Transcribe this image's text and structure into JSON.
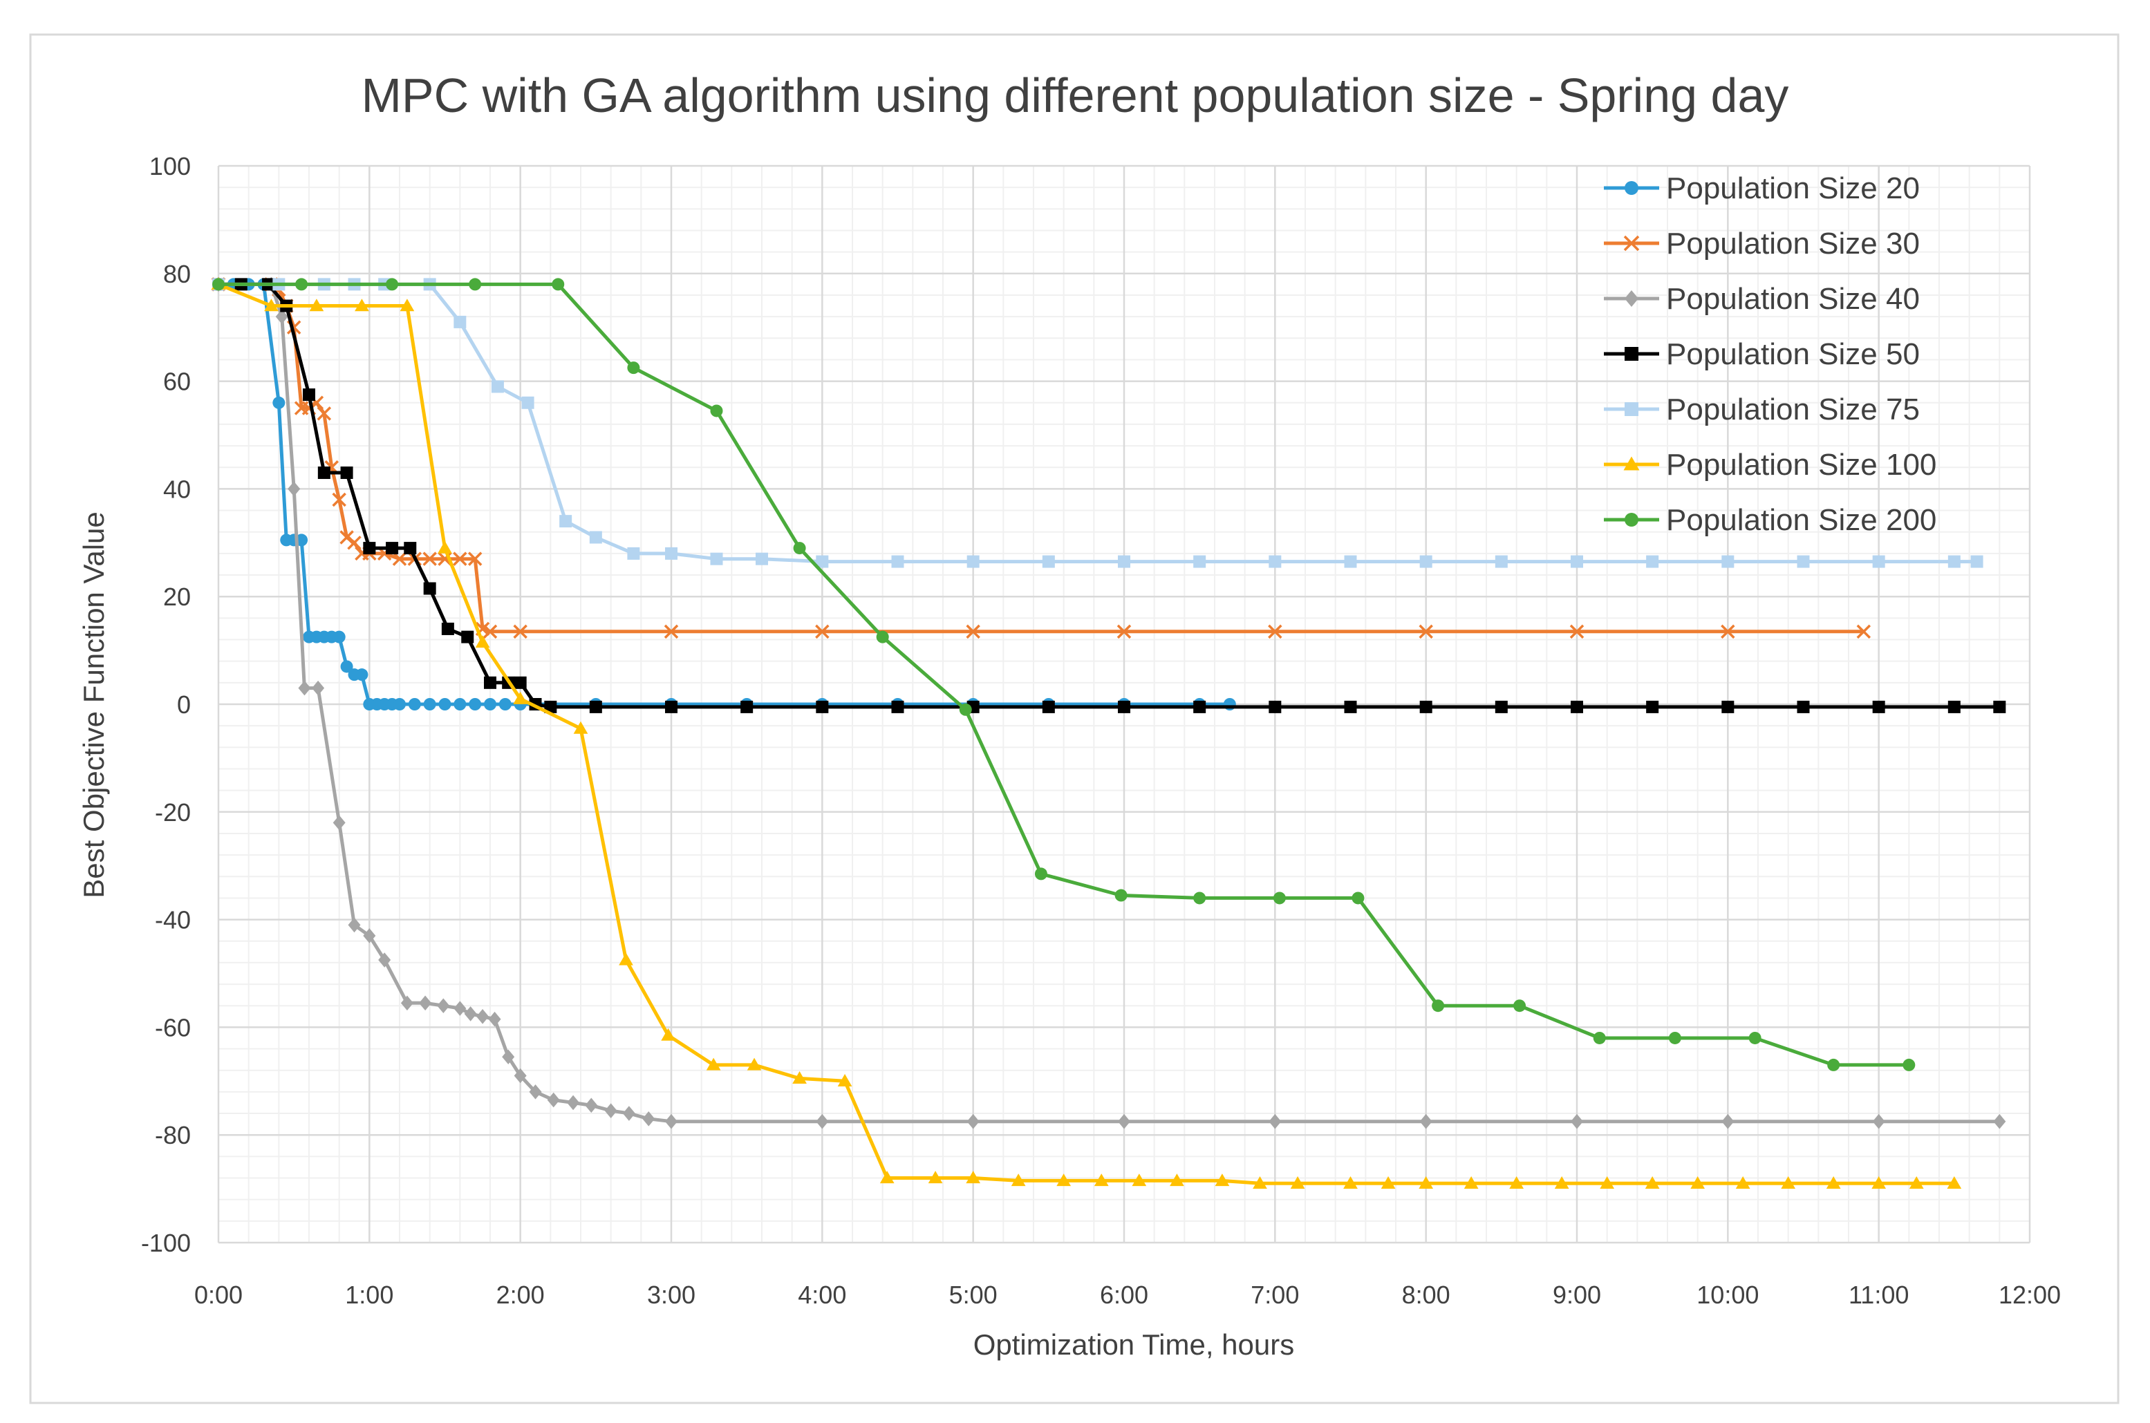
{
  "chart_data": {
    "type": "line",
    "title": "MPC with GA algorithm using different population size - Spring day",
    "xlabel": "Optimization Time, hours",
    "ylabel": "Best Objective Function Value",
    "xlim": [
      0,
      12
    ],
    "ylim": [
      -100,
      100
    ],
    "x_ticks": [
      0,
      1,
      2,
      3,
      4,
      5,
      6,
      7,
      8,
      9,
      10,
      11,
      12
    ],
    "x_tick_labels": [
      "0:00",
      "1:00",
      "2:00",
      "3:00",
      "4:00",
      "5:00",
      "6:00",
      "7:00",
      "8:00",
      "9:00",
      "10:00",
      "11:00",
      "12:00"
    ],
    "y_ticks": [
      -100,
      -80,
      -60,
      -40,
      -20,
      0,
      20,
      40,
      60,
      80,
      100
    ],
    "y_tick_labels": [
      "-100",
      "-80",
      "-60",
      "-40",
      "-20",
      "0",
      "20",
      "40",
      "60",
      "80",
      "100"
    ],
    "grid": true,
    "legend_position": "top-right",
    "series": [
      {
        "name": "Population Size 20",
        "color": "#2e9bd6",
        "marker": "circle",
        "x": [
          0,
          0.1,
          0.2,
          0.3,
          0.4,
          0.45,
          0.5,
          0.55,
          0.6,
          0.65,
          0.7,
          0.75,
          0.8,
          0.85,
          0.9,
          0.95,
          1.0,
          1.05,
          1.1,
          1.15,
          1.2,
          1.3,
          1.4,
          1.5,
          1.6,
          1.7,
          1.8,
          1.9,
          2.0,
          2.5,
          3.0,
          3.5,
          4.0,
          4.5,
          5.0,
          5.5,
          6.0,
          6.5,
          6.7
        ],
        "y": [
          78,
          78,
          78,
          78,
          56,
          30.5,
          30.5,
          30.5,
          12.5,
          12.5,
          12.5,
          12.5,
          12.5,
          7,
          5.5,
          5.5,
          0,
          0,
          0,
          0,
          0,
          0,
          0,
          0,
          0,
          0,
          0,
          0,
          0,
          0,
          0,
          0,
          0,
          0,
          0,
          0,
          0,
          0,
          0
        ]
      },
      {
        "name": "Population Size 30",
        "color": "#ed7d31",
        "marker": "x",
        "x": [
          0,
          0.35,
          0.4,
          0.45,
          0.5,
          0.55,
          0.6,
          0.65,
          0.7,
          0.75,
          0.8,
          0.85,
          0.9,
          0.95,
          1.0,
          1.1,
          1.2,
          1.3,
          1.4,
          1.5,
          1.6,
          1.7,
          1.75,
          1.8,
          2.0,
          3.0,
          4.0,
          5.0,
          6.0,
          7.0,
          8.0,
          9.0,
          10.0,
          10.9
        ],
        "y": [
          78,
          78,
          77,
          74,
          70,
          55,
          55,
          56,
          54,
          44,
          38,
          31,
          30,
          28,
          28,
          28,
          27,
          27,
          27,
          27,
          27,
          27,
          14,
          13.5,
          13.5,
          13.5,
          13.5,
          13.5,
          13.5,
          13.5,
          13.5,
          13.5,
          13.5,
          13.5
        ]
      },
      {
        "name": "Population Size 40",
        "color": "#a5a5a5",
        "marker": "diamond",
        "x": [
          0,
          0.35,
          0.42,
          0.5,
          0.57,
          0.66,
          0.8,
          0.9,
          1.0,
          1.1,
          1.25,
          1.37,
          1.49,
          1.6,
          1.67,
          1.75,
          1.83,
          1.92,
          2.0,
          2.1,
          2.22,
          2.35,
          2.47,
          2.6,
          2.72,
          2.85,
          3.0,
          4.0,
          5.0,
          6.0,
          7.0,
          8.0,
          9.0,
          10.0,
          11.0,
          11.8
        ],
        "y": [
          78,
          78,
          72,
          40,
          3,
          3,
          -22,
          -41,
          -43,
          -47.5,
          -55.5,
          -55.5,
          -56,
          -56.5,
          -57.5,
          -58,
          -58.5,
          -65.5,
          -69,
          -72,
          -73.5,
          -74,
          -74.5,
          -75.5,
          -76,
          -77,
          -77.5,
          -77.5,
          -77.5,
          -77.5,
          -77.5,
          -77.5,
          -77.5,
          -77.5,
          -77.5,
          -77.5
        ]
      },
      {
        "name": "Population Size 50",
        "color": "#000000",
        "marker": "square",
        "x": [
          0,
          0.15,
          0.33,
          0.45,
          0.6,
          0.7,
          0.85,
          1.0,
          1.15,
          1.27,
          1.4,
          1.52,
          1.65,
          1.8,
          1.92,
          2.0,
          2.1,
          2.2,
          2.5,
          3.0,
          3.5,
          4.0,
          4.5,
          5.0,
          5.5,
          6.0,
          6.5,
          7.0,
          7.5,
          8.0,
          8.5,
          9.0,
          9.5,
          10.0,
          10.5,
          11.0,
          11.5,
          11.8
        ],
        "y": [
          78,
          78,
          78,
          74,
          57.5,
          43,
          43,
          29,
          29,
          29,
          21.5,
          14,
          12.5,
          4,
          4,
          4,
          0,
          -0.5,
          -0.5,
          -0.5,
          -0.5,
          -0.5,
          -0.5,
          -0.5,
          -0.5,
          -0.5,
          -0.5,
          -0.5,
          -0.5,
          -0.5,
          -0.5,
          -0.5,
          -0.5,
          -0.5,
          -0.5,
          -0.5,
          -0.5,
          -0.5
        ]
      },
      {
        "name": "Population Size 75",
        "color": "#b4d4f0",
        "marker": "square",
        "x": [
          0,
          0.4,
          0.7,
          0.9,
          1.1,
          1.4,
          1.6,
          1.85,
          2.05,
          2.3,
          2.5,
          2.75,
          3.0,
          3.3,
          3.6,
          4.0,
          4.5,
          5.0,
          5.5,
          6.0,
          6.5,
          7.0,
          7.5,
          8.0,
          8.5,
          9.0,
          9.5,
          10.0,
          10.5,
          11.0,
          11.5,
          11.65
        ],
        "y": [
          78,
          78,
          78,
          78,
          78,
          78,
          71,
          59,
          56,
          34,
          31,
          28,
          28,
          27,
          27,
          26.5,
          26.5,
          26.5,
          26.5,
          26.5,
          26.5,
          26.5,
          26.5,
          26.5,
          26.5,
          26.5,
          26.5,
          26.5,
          26.5,
          26.5,
          26.5,
          26.5
        ]
      },
      {
        "name": "Population Size 100",
        "color": "#ffc000",
        "marker": "triangle",
        "x": [
          0,
          0.35,
          0.65,
          0.95,
          1.25,
          1.5,
          1.75,
          2.0,
          2.4,
          2.7,
          2.98,
          3.28,
          3.55,
          3.85,
          4.15,
          4.43,
          4.75,
          5.0,
          5.3,
          5.6,
          5.85,
          6.1,
          6.35,
          6.65,
          6.9,
          7.15,
          7.5,
          7.75,
          8.0,
          8.3,
          8.6,
          8.9,
          9.2,
          9.5,
          9.8,
          10.1,
          10.4,
          10.7,
          11.0,
          11.25,
          11.5
        ],
        "y": [
          78,
          74,
          74,
          74,
          74,
          29,
          11.5,
          1,
          -4.5,
          -47.5,
          -61.5,
          -67,
          -67,
          -69.5,
          -70,
          -88,
          -88,
          -88,
          -88.5,
          -88.5,
          -88.5,
          -88.5,
          -88.5,
          -88.5,
          -89,
          -89,
          -89,
          -89,
          -89,
          -89,
          -89,
          -89,
          -89,
          -89,
          -89,
          -89,
          -89,
          -89,
          -89,
          -89,
          -89
        ]
      },
      {
        "name": "Population Size 200",
        "color": "#4aab3b",
        "marker": "circle",
        "x": [
          0,
          0.55,
          1.15,
          1.7,
          2.25,
          2.75,
          3.3,
          3.85,
          4.4,
          4.95,
          5.45,
          5.98,
          6.5,
          7.03,
          7.55,
          8.08,
          8.62,
          9.15,
          9.65,
          10.18,
          10.7,
          11.2
        ],
        "y": [
          78,
          78,
          78,
          78,
          78,
          62.5,
          54.5,
          29,
          12.5,
          -1,
          -31.5,
          -35.5,
          -36,
          -36,
          -36,
          -56,
          -56,
          -62,
          -62,
          -62,
          -67,
          -67
        ]
      }
    ]
  }
}
